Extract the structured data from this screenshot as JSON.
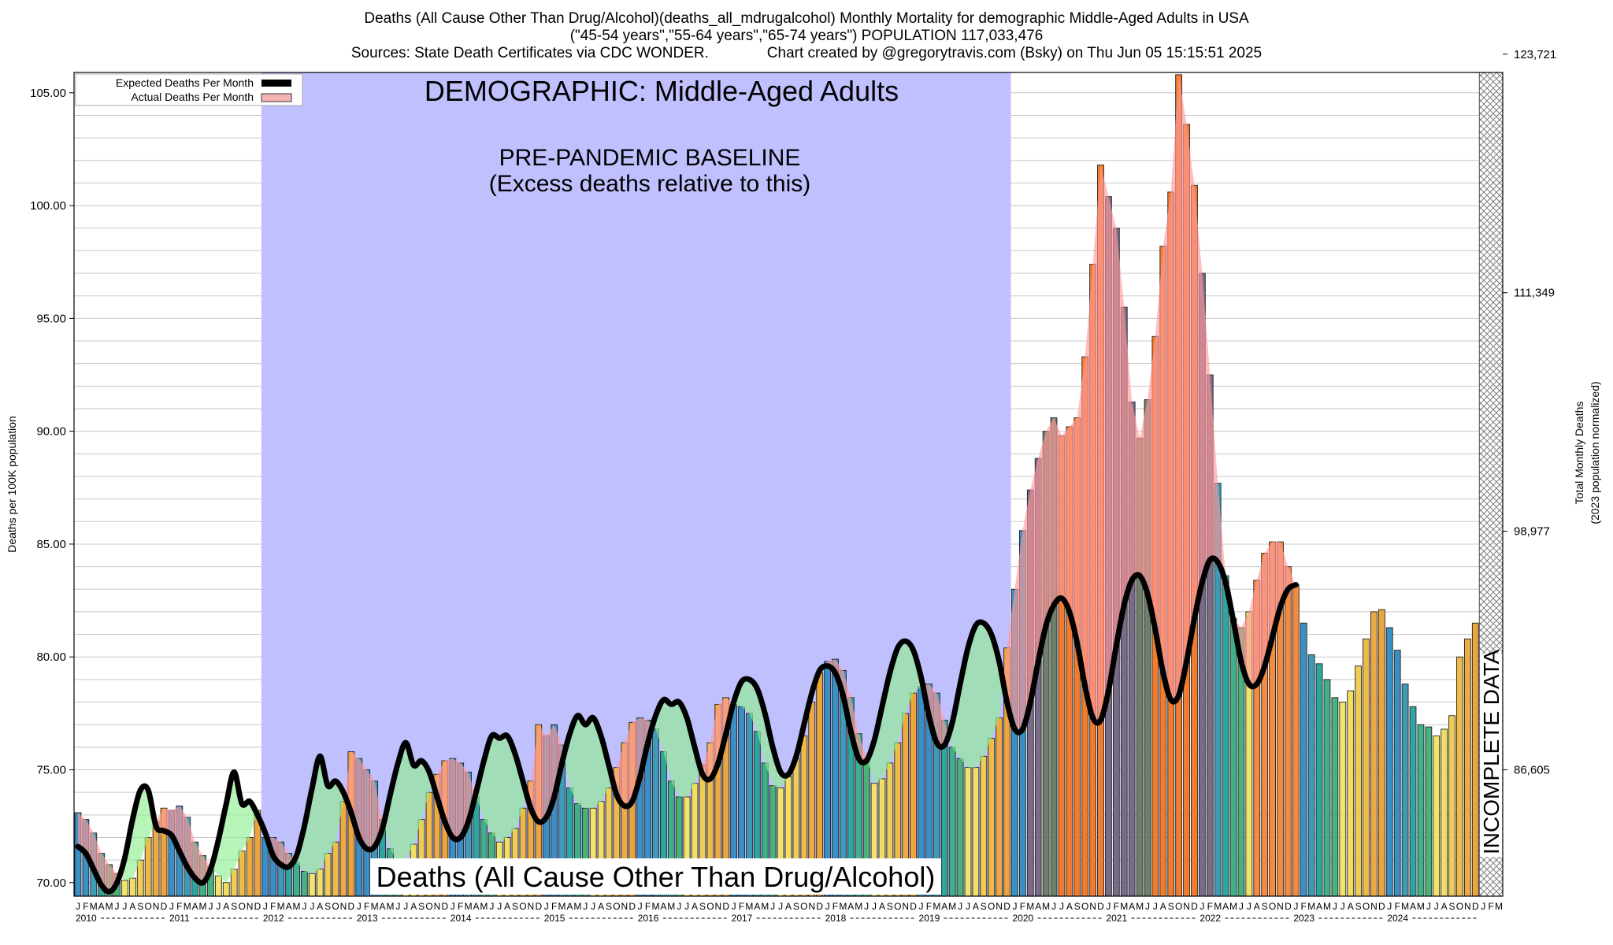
{
  "header": {
    "line1": "Deaths (All Cause Other Than Drug/Alcohol)(deaths_all_mdrugalcohol) Monthly Mortality for demographic Middle-Aged Adults in USA",
    "line2": "(\"45-54 years\",\"55-64 years\",\"65-74 years\") POPULATION 117,033,476",
    "line3": "Sources: State Death Certificates via CDC WONDER.              Chart created by @gregorytravis.com (Bsky) on Thu Jun 05 15:15:51 2025"
  },
  "chart_data": {
    "type": "bar",
    "title": "Deaths (All Cause Other Than Drug/Alcohol)",
    "ylabel": "Deaths per 100K population",
    "y2label_line1": "Total Monthly Deaths",
    "y2label_line2": "(2023 population normalized)",
    "ylim": [
      69.4,
      105.9
    ],
    "y_ticks": [
      "70.00",
      "75.00",
      "80.00",
      "85.00",
      "90.00",
      "95.00",
      "100.00",
      "105.00"
    ],
    "y2_ticks": [
      "86,605",
      "98,977",
      "111,349",
      "123,721"
    ],
    "y2_tick_values": [
      75.0,
      85.57,
      96.14,
      106.71
    ],
    "start": "2010-01",
    "month_letters": [
      "J",
      "F",
      "M",
      "A",
      "M",
      "J",
      "J",
      "A",
      "S",
      "O",
      "N",
      "D"
    ],
    "years": [
      "2010",
      "2011",
      "2012",
      "2013",
      "2014",
      "2015",
      "2016",
      "2017",
      "2018",
      "2019",
      "2020",
      "2021",
      "2022",
      "2023",
      "2024"
    ],
    "grid": "horizontal",
    "legend": {
      "position": "top-left",
      "expected": "Expected Deaths Per Month",
      "actual": "Actual Deaths Per Month"
    },
    "annotations": {
      "demographic": "DEMOGRAPHIC: Middle-Aged Adults",
      "baseline_line1": "PRE-PANDEMIC BASELINE",
      "baseline_line2": "(Excess deaths relative to this)",
      "incomplete": "INCOMPLETE DATA",
      "bottom_title": "Deaths (All Cause Other Than Drug/Alcohol)"
    },
    "baseline_range": [
      "2012-01",
      "2019-12"
    ],
    "incomplete_range": [
      "2025-01",
      "2025-03"
    ],
    "colors": {
      "baseline_band": "#c0c0ff",
      "excess_fill": "#ff9a9a",
      "deficit_fill": "#90ee90",
      "expected_line": "#000000"
    },
    "series": [
      {
        "name": "Actual Deaths Per Month",
        "values": [
          73.1,
          72.8,
          72.2,
          71.3,
          70.8,
          70.4,
          70.1,
          70.2,
          71.0,
          72.0,
          72.7,
          73.3,
          73.2,
          73.4,
          72.9,
          71.8,
          71.2,
          70.7,
          70.3,
          70.0,
          70.6,
          71.4,
          72.0,
          73.2,
          72.0,
          72.0,
          71.8,
          71.3,
          70.9,
          70.5,
          70.4,
          70.6,
          71.3,
          71.8,
          73.6,
          75.8,
          75.5,
          75.0,
          74.5,
          72.8,
          71.5,
          70.9,
          71.0,
          71.7,
          72.8,
          74.0,
          74.8,
          75.4,
          75.5,
          75.3,
          74.9,
          73.8,
          72.8,
          72.2,
          71.8,
          72.0,
          72.4,
          73.3,
          74.5,
          77.0,
          76.5,
          77.0,
          76.1,
          74.2,
          73.5,
          73.3,
          73.3,
          73.6,
          74.2,
          75.1,
          76.2,
          77.1,
          77.3,
          77.2,
          76.8,
          75.8,
          74.5,
          73.8,
          73.8,
          74.4,
          75.2,
          76.2,
          77.9,
          78.2,
          77.9,
          77.8,
          77.5,
          76.7,
          75.3,
          74.3,
          74.2,
          74.7,
          75.5,
          76.5,
          78.0,
          79.3,
          79.8,
          79.9,
          79.4,
          78.2,
          76.6,
          75.5,
          74.4,
          74.6,
          75.3,
          76.2,
          77.5,
          78.4,
          78.7,
          78.8,
          78.4,
          77.2,
          76.0,
          75.5,
          75.1,
          75.1,
          75.6,
          76.4,
          77.3,
          80.4,
          83.0,
          85.6,
          87.4,
          88.8,
          90.0,
          90.6,
          89.8,
          90.2,
          90.6,
          93.3,
          97.4,
          101.8,
          100.4,
          99.0,
          95.5,
          91.3,
          89.7,
          91.4,
          94.2,
          98.2,
          100.6,
          105.8,
          103.6,
          100.9,
          97.0,
          92.5,
          87.7,
          83.6,
          81.7,
          81.3,
          82.0,
          83.4,
          84.6,
          85.1,
          85.1,
          84.0,
          83.2,
          81.5,
          80.1,
          79.7,
          79.0,
          78.2,
          78.0,
          78.5,
          79.6,
          80.8,
          82.0,
          82.1,
          81.3,
          80.3,
          78.8,
          77.8,
          77.0,
          76.9,
          76.5,
          76.8,
          77.4,
          80.0,
          80.8,
          81.5
        ]
      },
      {
        "name": "Expected Deaths Per Month",
        "values": [
          71.6,
          71.3,
          70.6,
          69.9,
          69.6,
          70.0,
          71.1,
          72.8,
          74.1,
          74.1,
          72.5,
          72.3,
          72.1,
          71.4,
          70.7,
          70.2,
          70.0,
          70.6,
          71.9,
          73.5,
          74.9,
          73.5,
          73.6,
          73.0,
          72.2,
          71.2,
          70.8,
          70.7,
          71.2,
          72.5,
          74.2,
          75.6,
          74.3,
          74.5,
          74.0,
          73.1,
          72.0,
          71.5,
          71.6,
          72.4,
          73.9,
          75.3,
          76.2,
          75.2,
          75.4,
          74.9,
          73.8,
          72.7,
          72.0,
          72.0,
          72.7,
          74.0,
          75.4,
          76.5,
          76.4,
          76.5,
          75.7,
          74.5,
          73.3,
          72.7,
          72.9,
          73.8,
          75.3,
          76.6,
          77.4,
          77.0,
          77.3,
          76.5,
          75.2,
          73.9,
          73.4,
          73.6,
          74.7,
          76.2,
          77.4,
          78.1,
          77.9,
          78.0,
          77.3,
          76.0,
          74.8,
          74.6,
          75.3,
          76.6,
          78.0,
          78.9,
          79.0,
          78.6,
          77.5,
          76.0,
          74.9,
          74.8,
          75.6,
          77.0,
          78.4,
          79.4,
          79.6,
          79.3,
          78.3,
          76.7,
          75.5,
          75.4,
          76.3,
          77.8,
          79.3,
          80.4,
          80.7,
          80.3,
          79.1,
          77.4,
          76.2,
          76.1,
          77.1,
          78.8,
          80.4,
          81.4,
          81.5,
          81.0,
          79.8,
          78.0,
          76.8,
          76.8,
          78.0,
          79.8,
          81.4,
          82.3,
          82.6,
          82.0,
          80.6,
          78.7,
          77.3,
          77.2,
          78.5,
          80.5,
          82.3,
          83.4,
          83.6,
          82.8,
          81.2,
          79.3,
          78.1,
          78.3,
          79.8,
          81.7,
          83.3,
          84.3,
          84.2,
          83.3,
          81.6,
          79.8,
          78.8,
          78.8,
          79.6,
          80.9,
          82.2,
          83.0,
          83.2
        ]
      }
    ]
  }
}
